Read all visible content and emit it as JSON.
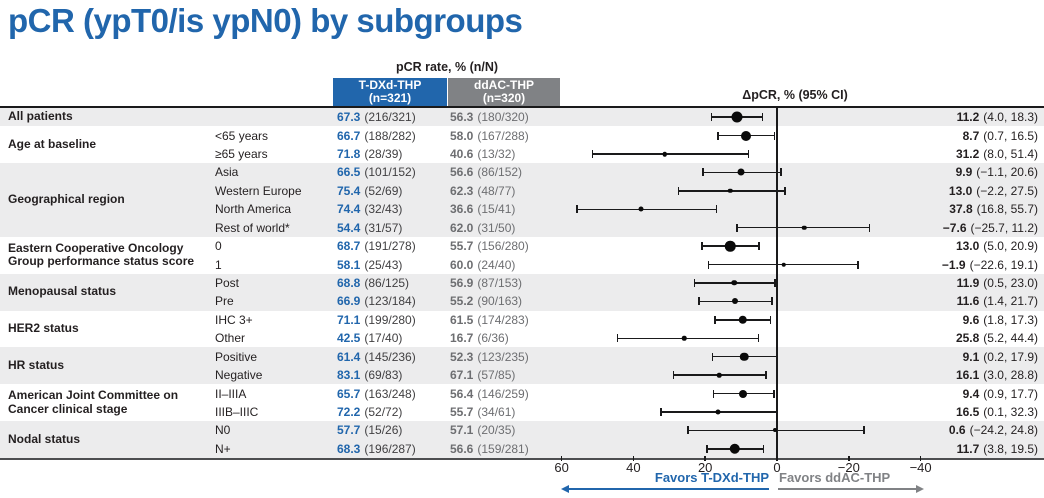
{
  "colors": {
    "blue": "#2166AC",
    "gray": "#808285",
    "shade": "#ECECED",
    "ink": "#231F20",
    "ddac_text": "#6D6E71",
    "tdxd_frac": "#414042"
  },
  "chart_data": {
    "type": "forest",
    "title": "pCR (ypT0/is ypN0) by subgroups",
    "columns": {
      "pcr_rate_label": "pCR rate, % (n/N)",
      "tdxd_name": "T-DXd-THP",
      "tdxd_n": "(n=321)",
      "ddac_name": "ddAC-THP",
      "ddac_n": "(n=320)",
      "delta_label": "ΔpCR, % (95% CI)"
    },
    "groups": [
      {
        "label": "All patients",
        "start": 0,
        "span": 1,
        "shade": true
      },
      {
        "label": "Age at baseline",
        "start": 1,
        "span": 2,
        "shade": false
      },
      {
        "label": "Geographical region",
        "start": 3,
        "span": 4,
        "shade": true
      },
      {
        "label": "Eastern Cooperative Oncology Group performance status score",
        "start": 7,
        "span": 2,
        "shade": false
      },
      {
        "label": "Menopausal status",
        "start": 9,
        "span": 2,
        "shade": true
      },
      {
        "label": "HER2 status",
        "start": 11,
        "span": 2,
        "shade": false
      },
      {
        "label": "HR status",
        "start": 13,
        "span": 2,
        "shade": true
      },
      {
        "label": "American Joint Committee on Cancer clinical stage",
        "start": 15,
        "span": 2,
        "shade": false
      },
      {
        "label": "Nodal status",
        "start": 17,
        "span": 2,
        "shade": true
      }
    ],
    "rows": [
      {
        "sublabel": "",
        "t_pct": "67.3",
        "t_frac": "(216/321)",
        "c_pct": "56.3",
        "c_frac": "(180/320)",
        "d_val": "11.2",
        "d_ci": "(4.0, 18.3)",
        "est": 11.2,
        "lo": 4.0,
        "hi": 18.3,
        "dot": 11
      },
      {
        "sublabel": "<65 years",
        "t_pct": "66.7",
        "t_frac": "(188/282)",
        "c_pct": "58.0",
        "c_frac": "(167/288)",
        "d_val": "8.7",
        "d_ci": "(0.7, 16.5)",
        "est": 8.7,
        "lo": 0.7,
        "hi": 16.5,
        "dot": 10
      },
      {
        "sublabel": "≥65 years",
        "t_pct": "71.8",
        "t_frac": "(28/39)",
        "c_pct": "40.6",
        "c_frac": "(13/32)",
        "d_val": "31.2",
        "d_ci": "(8.0, 51.4)",
        "est": 31.2,
        "lo": 8.0,
        "hi": 51.4,
        "dot": 4.5
      },
      {
        "sublabel": "Asia",
        "t_pct": "66.5",
        "t_frac": "(101/152)",
        "c_pct": "56.6",
        "c_frac": "(86/152)",
        "d_val": "9.9",
        "d_ci": "(−1.1, 20.6)",
        "est": 9.9,
        "lo": -1.1,
        "hi": 20.6,
        "dot": 7
      },
      {
        "sublabel": "Western Europe",
        "t_pct": "75.4",
        "t_frac": "(52/69)",
        "c_pct": "62.3",
        "c_frac": "(48/77)",
        "d_val": "13.0",
        "d_ci": "(−2.2, 27.5)",
        "est": 13.0,
        "lo": -2.2,
        "hi": 27.5,
        "dot": 4.5
      },
      {
        "sublabel": "North America",
        "t_pct": "74.4",
        "t_frac": "(32/43)",
        "c_pct": "36.6",
        "c_frac": "(15/41)",
        "d_val": "37.8",
        "d_ci": "(16.8, 55.7)",
        "est": 37.8,
        "lo": 16.8,
        "hi": 55.7,
        "dot": 5
      },
      {
        "sublabel": "Rest of world*",
        "t_pct": "54.4",
        "t_frac": "(31/57)",
        "c_pct": "62.0",
        "c_frac": "(31/50)",
        "d_val": "−7.6",
        "d_ci": "(−25.7, 11.2)",
        "est": -7.6,
        "lo": -25.7,
        "hi": 11.2,
        "dot": 4.5
      },
      {
        "sublabel": "0",
        "t_pct": "68.7",
        "t_frac": "(191/278)",
        "c_pct": "55.7",
        "c_frac": "(156/280)",
        "d_val": "13.0",
        "d_ci": "(5.0, 20.9)",
        "est": 13.0,
        "lo": 5.0,
        "hi": 20.9,
        "dot": 10.5
      },
      {
        "sublabel": "1",
        "t_pct": "58.1",
        "t_frac": "(25/43)",
        "c_pct": "60.0",
        "c_frac": "(24/40)",
        "d_val": "−1.9",
        "d_ci": "(−22.6, 19.1)",
        "est": -1.9,
        "lo": -22.6,
        "hi": 19.1,
        "dot": 4.5
      },
      {
        "sublabel": "Post",
        "t_pct": "68.8",
        "t_frac": "(86/125)",
        "c_pct": "56.9",
        "c_frac": "(87/153)",
        "d_val": "11.9",
        "d_ci": "(0.5, 23.0)",
        "est": 11.9,
        "lo": 0.5,
        "hi": 23.0,
        "dot": 5.5
      },
      {
        "sublabel": "Pre",
        "t_pct": "66.9",
        "t_frac": "(123/184)",
        "c_pct": "55.2",
        "c_frac": "(90/163)",
        "d_val": "11.6",
        "d_ci": "(1.4, 21.7)",
        "est": 11.6,
        "lo": 1.4,
        "hi": 21.7,
        "dot": 6
      },
      {
        "sublabel": "IHC 3+",
        "t_pct": "71.1",
        "t_frac": "(199/280)",
        "c_pct": "61.5",
        "c_frac": "(174/283)",
        "d_val": "9.6",
        "d_ci": "(1.8, 17.3)",
        "est": 9.6,
        "lo": 1.8,
        "hi": 17.3,
        "dot": 8.5
      },
      {
        "sublabel": "Other",
        "t_pct": "42.5",
        "t_frac": "(17/40)",
        "c_pct": "16.7",
        "c_frac": "(6/36)",
        "d_val": "25.8",
        "d_ci": "(5.2, 44.4)",
        "est": 25.8,
        "lo": 5.2,
        "hi": 44.4,
        "dot": 4.5
      },
      {
        "sublabel": "Positive",
        "t_pct": "61.4",
        "t_frac": "(145/236)",
        "c_pct": "52.3",
        "c_frac": "(123/235)",
        "d_val": "9.1",
        "d_ci": "(0.2, 17.9)",
        "est": 9.1,
        "lo": 0.2,
        "hi": 17.9,
        "dot": 8.5
      },
      {
        "sublabel": "Negative",
        "t_pct": "83.1",
        "t_frac": "(69/83)",
        "c_pct": "67.1",
        "c_frac": "(57/85)",
        "d_val": "16.1",
        "d_ci": "(3.0, 28.8)",
        "est": 16.1,
        "lo": 3.0,
        "hi": 28.8,
        "dot": 4.5
      },
      {
        "sublabel": "II–IIIA",
        "t_pct": "65.7",
        "t_frac": "(163/248)",
        "c_pct": "56.4",
        "c_frac": "(146/259)",
        "d_val": "9.4",
        "d_ci": "(0.9, 17.7)",
        "est": 9.4,
        "lo": 0.9,
        "hi": 17.7,
        "dot": 8
      },
      {
        "sublabel": "IIIB–IIIC",
        "t_pct": "72.2",
        "t_frac": "(52/72)",
        "c_pct": "55.7",
        "c_frac": "(34/61)",
        "d_val": "16.5",
        "d_ci": "(0.1, 32.3)",
        "est": 16.5,
        "lo": 0.1,
        "hi": 32.3,
        "dot": 5
      },
      {
        "sublabel": "N0",
        "t_pct": "57.7",
        "t_frac": "(15/26)",
        "c_pct": "57.1",
        "c_frac": "(20/35)",
        "d_val": "0.6",
        "d_ci": "(−24.2, 24.8)",
        "est": 0.6,
        "lo": -24.2,
        "hi": 24.8,
        "dot": 4
      },
      {
        "sublabel": "N+",
        "t_pct": "68.3",
        "t_frac": "(196/287)",
        "c_pct": "56.6",
        "c_frac": "(159/281)",
        "d_val": "11.7",
        "d_ci": "(3.8, 19.5)",
        "est": 11.7,
        "lo": 3.8,
        "hi": 19.5,
        "dot": 10.5
      }
    ],
    "axis": {
      "reversed": true,
      "xlim": [
        65,
        -45
      ],
      "ticks": [
        {
          "label": "60",
          "value": 60
        },
        {
          "label": "40",
          "value": 40
        },
        {
          "label": "20",
          "value": 20
        },
        {
          "label": "0",
          "value": 0
        },
        {
          "label": "−20",
          "value": -20
        },
        {
          "label": "−40",
          "value": -40
        }
      ]
    },
    "footer": {
      "favors_left": "Favors T-DXd-THP",
      "favors_right": "Favors ddAC-THP"
    }
  }
}
